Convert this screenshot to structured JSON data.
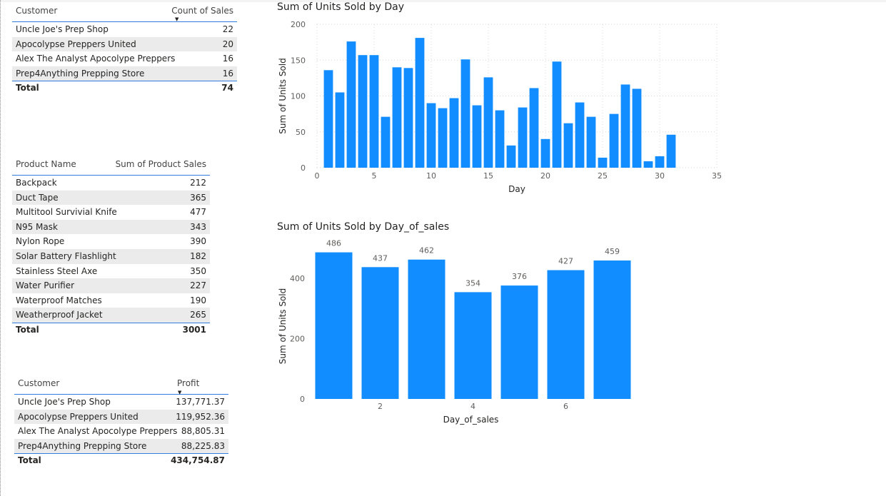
{
  "table_customers_count": {
    "col_customer": "Customer",
    "col_value": "Count of Sales",
    "rows": [
      {
        "name": "Uncle Joe's Prep Shop",
        "value": "22"
      },
      {
        "name": "Apocolypse Preppers United",
        "value": "20"
      },
      {
        "name": "Alex The Analyst Apocolype Preppers",
        "value": "16"
      },
      {
        "name": "Prep4Anything Prepping Store",
        "value": "16"
      }
    ],
    "total_label": "Total",
    "total_value": "74"
  },
  "table_products": {
    "col_product": "Product Name",
    "col_value": "Sum of Product Sales",
    "rows": [
      {
        "name": "Backpack",
        "value": "212"
      },
      {
        "name": "Duct Tape",
        "value": "365"
      },
      {
        "name": "Multitool Survivial Knife",
        "value": "477"
      },
      {
        "name": "N95 Mask",
        "value": "343"
      },
      {
        "name": "Nylon Rope",
        "value": "390"
      },
      {
        "name": "Solar Battery Flashlight",
        "value": "182"
      },
      {
        "name": "Stainless Steel Axe",
        "value": "350"
      },
      {
        "name": "Water Purifier",
        "value": "227"
      },
      {
        "name": "Waterproof Matches",
        "value": "190"
      },
      {
        "name": "Weatherproof Jacket",
        "value": "265"
      }
    ],
    "total_label": "Total",
    "total_value": "3001"
  },
  "table_customers_profit": {
    "col_customer": "Customer",
    "col_value": "Profit",
    "rows": [
      {
        "name": "Uncle Joe's Prep Shop",
        "value": "137,771.37"
      },
      {
        "name": "Apocolypse Preppers United",
        "value": "119,952.36"
      },
      {
        "name": "Alex The Analyst Apocolype Preppers",
        "value": "88,805.31"
      },
      {
        "name": "Prep4Anything Prepping Store",
        "value": "88,225.83"
      }
    ],
    "total_label": "Total",
    "total_value": "434,754.87"
  },
  "colors": {
    "bar": "#118dff",
    "accent": "#2f7de1"
  },
  "chart_data": [
    {
      "type": "bar",
      "title": "Sum of Units Sold by Day",
      "xlabel": "Day",
      "ylabel": "Sum of Units Sold",
      "x": [
        1,
        2,
        3,
        4,
        5,
        6,
        7,
        8,
        9,
        10,
        11,
        12,
        13,
        14,
        15,
        16,
        17,
        18,
        19,
        20,
        21,
        22,
        23,
        24,
        25,
        26,
        27,
        28,
        29,
        30,
        31
      ],
      "values": [
        136,
        105,
        176,
        157,
        157,
        71,
        140,
        139,
        181,
        90,
        83,
        97,
        151,
        87,
        126,
        80,
        31,
        84,
        111,
        40,
        148,
        62,
        91,
        71,
        14,
        75,
        116,
        110,
        9,
        16,
        46
      ],
      "xlim": [
        0,
        35
      ],
      "ylim": [
        0,
        200
      ],
      "xticks": [
        "0",
        "5",
        "10",
        "15",
        "20",
        "25",
        "30",
        "35"
      ],
      "yticks": [
        "0",
        "50",
        "100",
        "150",
        "200"
      ],
      "grid": true
    },
    {
      "type": "bar",
      "title": "Sum of Units Sold by Day_of_sales",
      "xlabel": "Day_of_sales",
      "ylabel": "Sum of Units Sold",
      "x": [
        1,
        2,
        3,
        4,
        5,
        6,
        7
      ],
      "values": [
        486,
        437,
        462,
        354,
        376,
        427,
        459
      ],
      "data_labels": [
        "486",
        "437",
        "462",
        "354",
        "376",
        "427",
        "459"
      ],
      "ylim": [
        0,
        530
      ],
      "xticks": [
        "2",
        "4",
        "6"
      ],
      "yticks": [
        "0",
        "200",
        "400"
      ],
      "grid": false
    }
  ]
}
